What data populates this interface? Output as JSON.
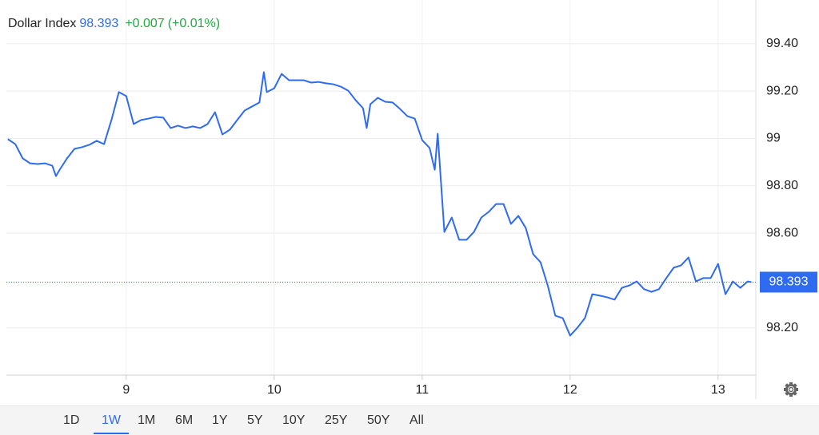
{
  "header": {
    "name": "Dollar Index",
    "price": 98.393,
    "change": "+0.007",
    "change_pct": "(+0.01%)"
  },
  "chart_data": {
    "type": "line",
    "color": "#2f6bf0",
    "grid": true,
    "x": [
      8.2,
      8.25,
      8.3,
      8.35,
      8.4,
      8.45,
      8.5,
      8.525,
      8.55,
      8.6,
      8.65,
      8.7,
      8.75,
      8.8,
      8.85,
      8.9,
      8.95,
      9.0,
      9.05,
      9.1,
      9.15,
      9.2,
      9.25,
      9.3,
      9.35,
      9.4,
      9.45,
      9.5,
      9.55,
      9.6,
      9.65,
      9.7,
      9.75,
      9.8,
      9.85,
      9.9,
      9.93,
      9.95,
      10.0,
      10.05,
      10.1,
      10.15,
      10.2,
      10.25,
      10.3,
      10.35,
      10.4,
      10.45,
      10.5,
      10.55,
      10.6,
      10.625,
      10.65,
      10.7,
      10.75,
      10.8,
      10.85,
      10.9,
      10.95,
      11.0,
      11.05,
      11.085,
      11.105,
      11.15,
      11.2,
      11.25,
      11.3,
      11.35,
      11.4,
      11.45,
      11.5,
      11.55,
      11.6,
      11.65,
      11.7,
      11.75,
      11.8,
      11.85,
      11.9,
      11.95,
      12.0,
      12.05,
      12.1,
      12.15,
      12.2,
      12.25,
      12.3,
      12.35,
      12.4,
      12.45,
      12.5,
      12.55,
      12.6,
      12.65,
      12.7,
      12.75,
      12.8,
      12.85,
      12.9,
      12.95,
      13.0,
      13.05,
      13.1,
      13.15,
      13.2,
      13.225
    ],
    "values": [
      98.997,
      98.976,
      98.916,
      98.895,
      98.892,
      98.895,
      98.885,
      98.841,
      98.868,
      98.916,
      98.956,
      98.963,
      98.973,
      98.99,
      98.976,
      99.078,
      99.196,
      99.179,
      99.061,
      99.078,
      99.084,
      99.091,
      99.088,
      99.044,
      99.054,
      99.044,
      99.051,
      99.044,
      99.061,
      99.111,
      99.017,
      99.037,
      99.078,
      99.118,
      99.135,
      99.152,
      99.28,
      99.196,
      99.212,
      99.273,
      99.246,
      99.246,
      99.246,
      99.236,
      99.239,
      99.233,
      99.229,
      99.219,
      99.202,
      99.162,
      99.128,
      99.044,
      99.145,
      99.172,
      99.155,
      99.152,
      99.125,
      99.094,
      99.084,
      98.993,
      98.96,
      98.868,
      99.02,
      98.605,
      98.666,
      98.572,
      98.572,
      98.605,
      98.666,
      98.69,
      98.723,
      98.723,
      98.639,
      98.673,
      98.622,
      98.511,
      98.477,
      98.376,
      98.251,
      98.241,
      98.167,
      98.201,
      98.241,
      98.342,
      98.336,
      98.329,
      98.319,
      98.369,
      98.379,
      98.396,
      98.363,
      98.352,
      98.363,
      98.41,
      98.454,
      98.464,
      98.497,
      98.396,
      98.41,
      98.41,
      98.47,
      98.342,
      98.396,
      98.369,
      98.396,
      98.393
    ],
    "xlim": [
      8.19,
      13.255
    ],
    "xticks": [
      9,
      10,
      11,
      12,
      13
    ],
    "ylim": [
      98.0,
      99.585
    ],
    "yticks": [
      {
        "value": 98.2,
        "label": "98.20"
      },
      {
        "value": 98.6,
        "label": "98.60"
      },
      {
        "value": 98.8,
        "label": "98.80"
      },
      99,
      {
        "value": 99.2,
        "label": "99.20"
      },
      {
        "value": 99.4,
        "label": "99.40"
      }
    ]
  },
  "range_buttons": {
    "options": [
      "1D",
      "1W",
      "1M",
      "6M",
      "1Y",
      "5Y",
      "10Y",
      "25Y",
      "50Y",
      "All"
    ],
    "selected": 1
  }
}
